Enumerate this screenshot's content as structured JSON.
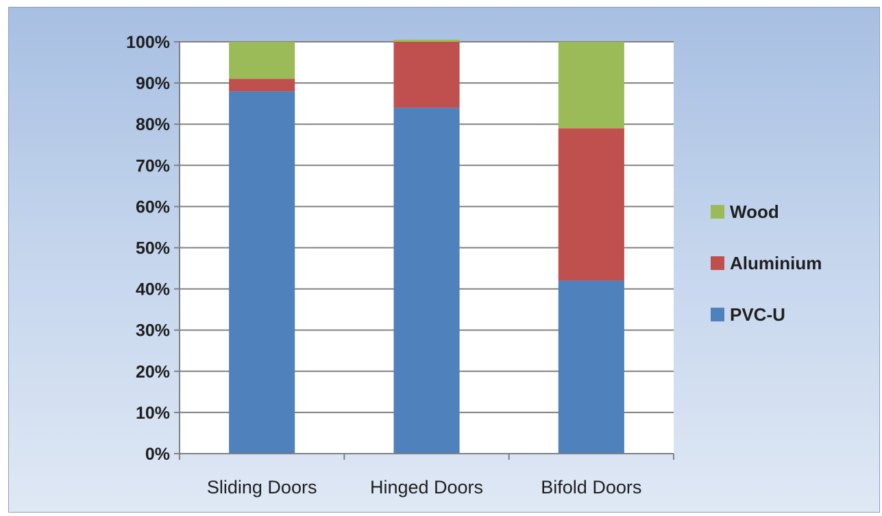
{
  "chart_data": {
    "type": "bar",
    "stacked": true,
    "categories": [
      "Sliding Doors",
      "Hinged Doors",
      "Bifold Doors"
    ],
    "series": [
      {
        "name": "PVC-U",
        "color": "#4f81bd",
        "values": [
          88,
          84,
          42
        ]
      },
      {
        "name": "Aluminium",
        "color": "#c0504d",
        "values": [
          3,
          16,
          37
        ]
      },
      {
        "name": "Wood",
        "color": "#9bbb59",
        "values": [
          9,
          0.5,
          21
        ]
      }
    ],
    "y_ticks": [
      "0%",
      "10%",
      "20%",
      "30%",
      "40%",
      "50%",
      "60%",
      "70%",
      "80%",
      "90%",
      "100%"
    ],
    "ylim": [
      0,
      100
    ],
    "grid": true,
    "legend": "right",
    "legend_order": [
      "Wood",
      "Aluminium",
      "PVC-U"
    ]
  }
}
